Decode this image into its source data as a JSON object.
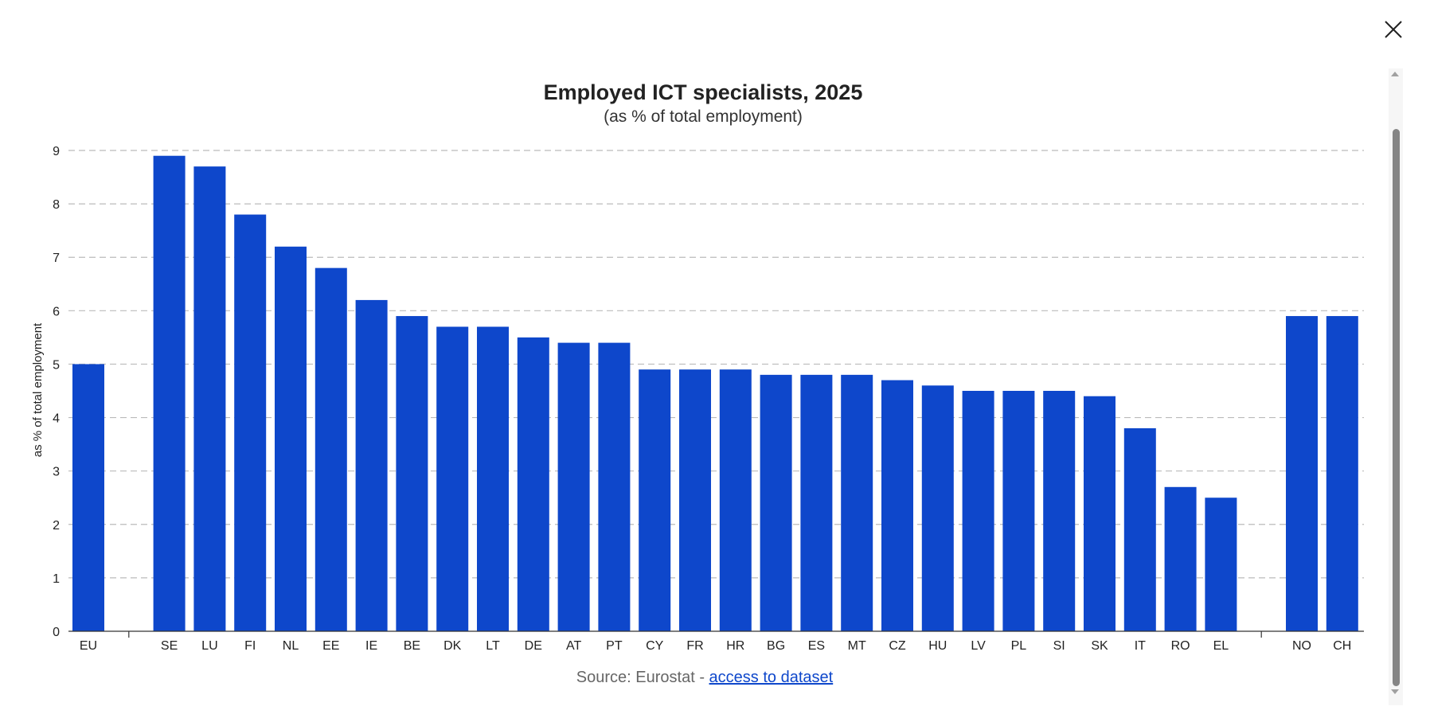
{
  "dialog": {
    "close_icon": "close-icon"
  },
  "source": {
    "prefix": "Source: Eurostat - ",
    "link_label": "access to dataset"
  },
  "colors": {
    "bar": "#0e47cb",
    "grid": "#bbbbbb",
    "axis": "#333333"
  },
  "chart_data": {
    "type": "bar",
    "title": "Employed ICT specialists, 2025",
    "subtitle": "(as % of total employment)",
    "ylabel": "as % of total employment",
    "xlabel": "",
    "ylim": [
      0,
      9
    ],
    "yticks": [
      0,
      1,
      2,
      3,
      4,
      5,
      6,
      7,
      8,
      9
    ],
    "grid": true,
    "categories": [
      "EU",
      "",
      "SE",
      "LU",
      "FI",
      "NL",
      "EE",
      "IE",
      "BE",
      "DK",
      "LT",
      "DE",
      "AT",
      "PT",
      "CY",
      "FR",
      "HR",
      "BG",
      "ES",
      "MT",
      "CZ",
      "HU",
      "LV",
      "PL",
      "SI",
      "SK",
      "IT",
      "RO",
      "EL",
      "",
      "NO",
      "CH"
    ],
    "values": [
      5.0,
      null,
      8.9,
      8.7,
      7.8,
      7.2,
      6.8,
      6.2,
      5.9,
      5.7,
      5.7,
      5.5,
      5.4,
      5.4,
      4.9,
      4.9,
      4.9,
      4.8,
      4.8,
      4.8,
      4.7,
      4.6,
      4.5,
      4.5,
      4.5,
      4.4,
      3.8,
      2.7,
      2.5,
      null,
      5.9,
      5.9
    ]
  }
}
